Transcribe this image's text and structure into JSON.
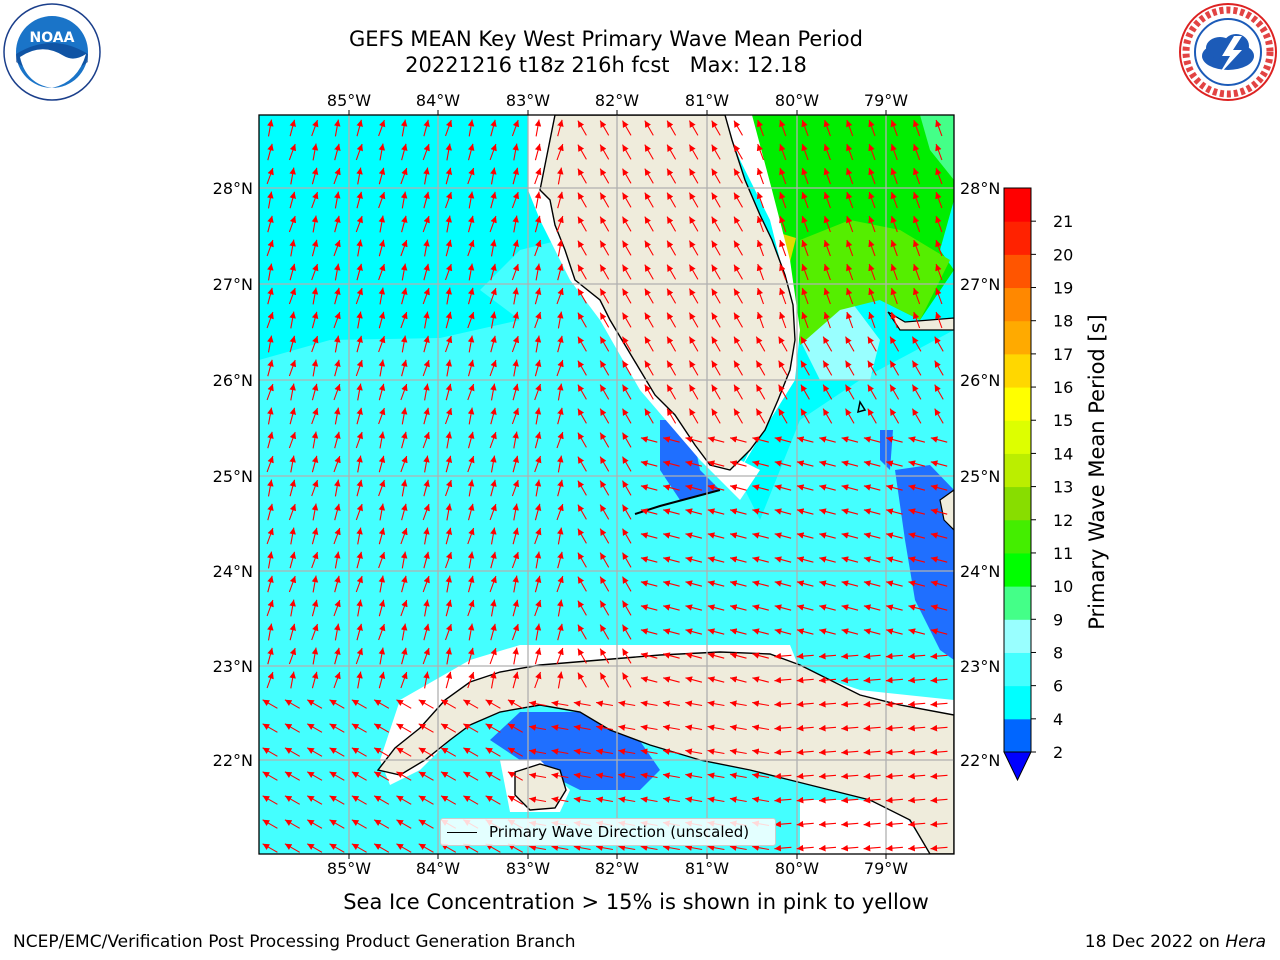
{
  "title": {
    "line1": "GEFS MEAN Key West Primary Wave Mean Period",
    "line2": "20221216 t18z 216h fcst   Max: 12.18"
  },
  "map": {
    "lon_labels": [
      "85°W",
      "84°W",
      "83°W",
      "82°W",
      "81°W",
      "80°W",
      "79°W"
    ],
    "lat_labels": [
      "28°N",
      "27°N",
      "26°N",
      "25°N",
      "24°N",
      "23°N",
      "22°N"
    ],
    "legend_label": "Primary Wave Direction (unscaled)",
    "land_color": "#efecdc",
    "arrow_color": "#ff0000"
  },
  "colorbar": {
    "label": "Primary Wave Mean Period [s]",
    "ticks": [
      "2",
      "4",
      "6",
      "8",
      "9",
      "10",
      "11",
      "12",
      "13",
      "14",
      "15",
      "16",
      "17",
      "18",
      "19",
      "20",
      "21"
    ],
    "colors": [
      "#0066ff",
      "#00ffff",
      "#44ffff",
      "#99ffff",
      "#44ff88",
      "#00ff00",
      "#44ee00",
      "#88dd00",
      "#bbee00",
      "#ddff00",
      "#ffff00",
      "#ffd700",
      "#ffaa00",
      "#ff8800",
      "#ff5500",
      "#ff2200",
      "#ff0000"
    ],
    "extend_color": "#0000ff"
  },
  "footer": {
    "note": "Sea Ice Concentration > 15% is shown in pink to yellow",
    "left": "NCEP/EMC/Verification Post Processing Product Generation Branch",
    "right_date": "18 Dec 2022 on",
    "right_host": "Hera"
  },
  "logos": {
    "noaa": "NOAA",
    "nws": "NATIONAL WEATHER SERVICE"
  }
}
